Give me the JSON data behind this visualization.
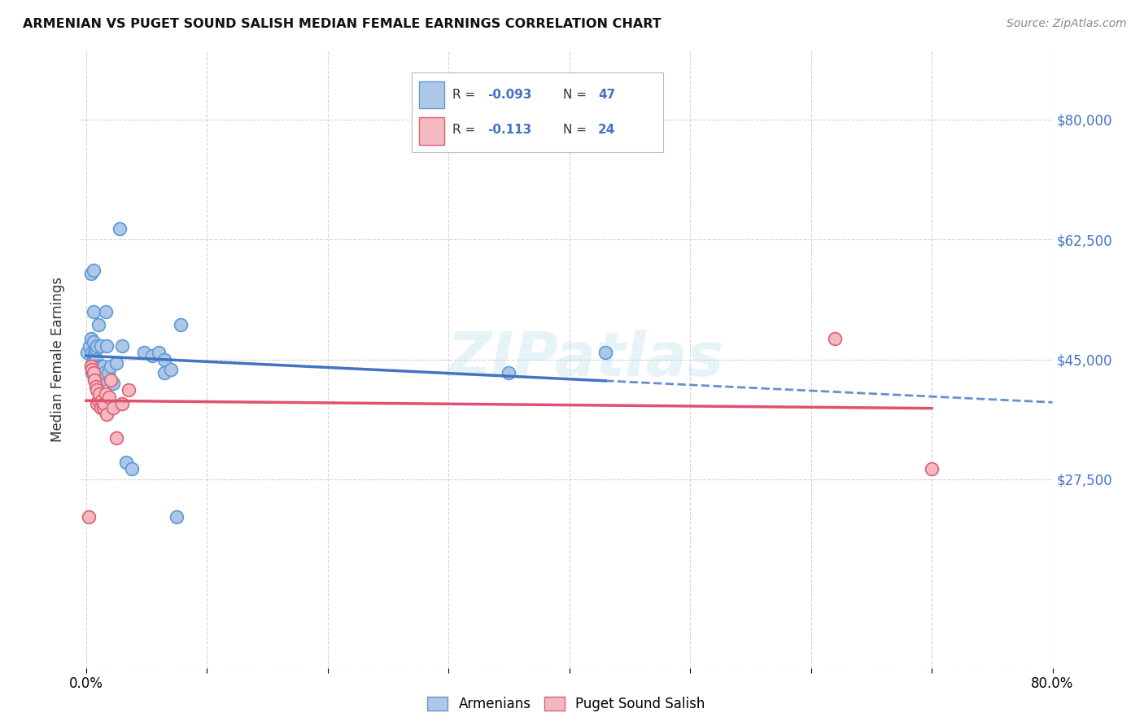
{
  "title": "ARMENIAN VS PUGET SOUND SALISH MEDIAN FEMALE EARNINGS CORRELATION CHART",
  "source": "Source: ZipAtlas.com",
  "ylabel": "Median Female Earnings",
  "xlim": [
    -0.005,
    0.8
  ],
  "ylim": [
    0,
    90000
  ],
  "yticks": [
    0,
    27500,
    45000,
    62500,
    80000
  ],
  "ytick_labels": [
    "",
    "$27,500",
    "$45,000",
    "$62,500",
    "$80,000"
  ],
  "background_color": "#ffffff",
  "grid_color": "#d0d0d0",
  "armenian_color": "#aec6e8",
  "armenian_edge_color": "#5b9bd5",
  "puget_color": "#f4b8c1",
  "puget_edge_color": "#e06070",
  "trend_armenian_color": "#4472c4",
  "trend_puget_color": "#e05070",
  "watermark": "ZIPatlas",
  "R_armenian": -0.093,
  "N_armenian": 47,
  "R_puget": -0.113,
  "N_puget": 24,
  "armenian_x": [
    0.001,
    0.003,
    0.004,
    0.004,
    0.005,
    0.005,
    0.005,
    0.006,
    0.006,
    0.006,
    0.007,
    0.007,
    0.007,
    0.007,
    0.008,
    0.008,
    0.008,
    0.009,
    0.009,
    0.01,
    0.01,
    0.011,
    0.012,
    0.012,
    0.013,
    0.014,
    0.015,
    0.016,
    0.017,
    0.018,
    0.02,
    0.022,
    0.025,
    0.028,
    0.03,
    0.033,
    0.038,
    0.048,
    0.055,
    0.06,
    0.065,
    0.065,
    0.07,
    0.075,
    0.078,
    0.35,
    0.43
  ],
  "armenian_y": [
    46000,
    47000,
    57500,
    48000,
    46000,
    44500,
    43000,
    58000,
    52000,
    47500,
    46000,
    45500,
    44500,
    43000,
    46500,
    45000,
    44000,
    47000,
    43500,
    50000,
    44000,
    44000,
    47000,
    42000,
    44000,
    44000,
    43000,
    52000,
    47000,
    43000,
    44000,
    41500,
    44500,
    64000,
    47000,
    30000,
    29000,
    46000,
    45500,
    46000,
    45000,
    43000,
    43500,
    22000,
    50000,
    43000,
    46000
  ],
  "puget_x": [
    0.002,
    0.004,
    0.005,
    0.006,
    0.007,
    0.008,
    0.009,
    0.009,
    0.01,
    0.011,
    0.012,
    0.013,
    0.014,
    0.015,
    0.016,
    0.017,
    0.019,
    0.02,
    0.022,
    0.025,
    0.03,
    0.035,
    0.62,
    0.7
  ],
  "puget_y": [
    22000,
    44000,
    43500,
    43000,
    42000,
    41000,
    40500,
    38500,
    39000,
    40000,
    38000,
    39000,
    38000,
    38500,
    40000,
    37000,
    39500,
    42000,
    38000,
    33500,
    38500,
    40500,
    48000,
    29000
  ]
}
